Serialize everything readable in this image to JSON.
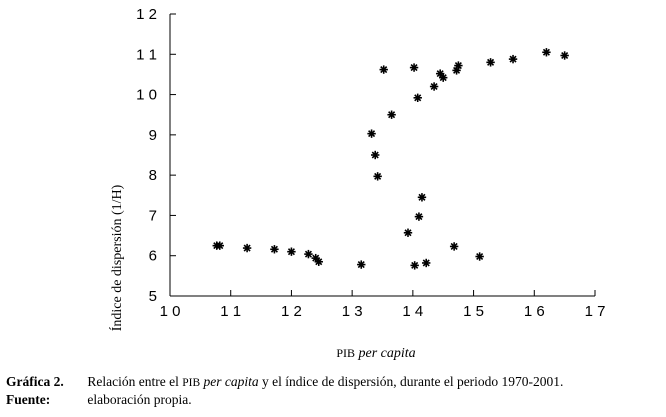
{
  "chart_data": {
    "type": "scatter",
    "xlabel_prefix": "PIB",
    "xlabel_italic": "per capita",
    "ylabel": "Índice de dispersión (1/H)",
    "xlim": [
      10,
      17
    ],
    "ylim": [
      5,
      12
    ],
    "x_ticks": [
      "1 0",
      "1 1",
      "1 2",
      "1 3",
      "1 4",
      "1 5",
      "1 6",
      "1 7"
    ],
    "y_ticks": [
      "5",
      "6",
      "7",
      "8",
      "9",
      "1 0",
      "1 1",
      "1 2"
    ],
    "marker": "*",
    "points": [
      {
        "x": 10.77,
        "y": 6.25
      },
      {
        "x": 10.82,
        "y": 6.25
      },
      {
        "x": 11.27,
        "y": 6.19
      },
      {
        "x": 11.72,
        "y": 6.16
      },
      {
        "x": 12.0,
        "y": 6.1
      },
      {
        "x": 12.28,
        "y": 6.04
      },
      {
        "x": 12.4,
        "y": 5.94
      },
      {
        "x": 12.45,
        "y": 5.85
      },
      {
        "x": 13.15,
        "y": 5.78
      },
      {
        "x": 13.32,
        "y": 9.03
      },
      {
        "x": 13.38,
        "y": 8.5
      },
      {
        "x": 13.42,
        "y": 7.97
      },
      {
        "x": 13.52,
        "y": 10.62
      },
      {
        "x": 13.65,
        "y": 9.5
      },
      {
        "x": 13.92,
        "y": 6.57
      },
      {
        "x": 14.02,
        "y": 10.67
      },
      {
        "x": 14.03,
        "y": 5.76
      },
      {
        "x": 14.08,
        "y": 9.92
      },
      {
        "x": 14.1,
        "y": 6.97
      },
      {
        "x": 14.15,
        "y": 7.45
      },
      {
        "x": 14.22,
        "y": 5.82
      },
      {
        "x": 14.35,
        "y": 10.2
      },
      {
        "x": 14.45,
        "y": 10.52
      },
      {
        "x": 14.5,
        "y": 10.42
      },
      {
        "x": 14.68,
        "y": 6.23
      },
      {
        "x": 14.72,
        "y": 10.6
      },
      {
        "x": 14.75,
        "y": 10.72
      },
      {
        "x": 15.1,
        "y": 5.98
      },
      {
        "x": 15.28,
        "y": 10.8
      },
      {
        "x": 15.65,
        "y": 10.88
      },
      {
        "x": 16.2,
        "y": 11.05
      },
      {
        "x": 16.5,
        "y": 10.97
      }
    ]
  },
  "caption": {
    "line1_label": "Gráfica 2.",
    "line1_pre": "Relación entre el",
    "line1_sc": "PIB",
    "line1_it": "per capita",
    "line1_post": "y el índice de dispersión, durante el periodo 1970-2001.",
    "line2_label": "Fuente:",
    "line2_text": "elaboración propia."
  }
}
